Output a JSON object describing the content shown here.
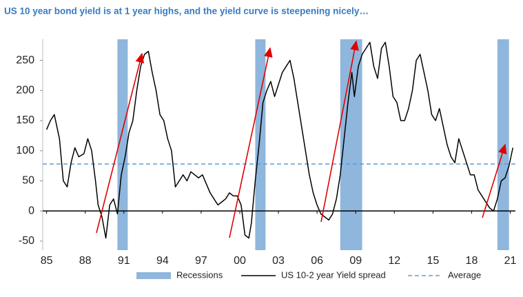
{
  "chart_data": {
    "type": "line",
    "title": "US 10 year bond yield is at 1 year highs, and the yield curve is steepening nicely…",
    "x": [
      1985.0,
      1985.3,
      1985.6,
      1986.0,
      1986.3,
      1986.6,
      1986.9,
      1987.2,
      1987.5,
      1987.9,
      1988.2,
      1988.5,
      1988.8,
      1989.0,
      1989.3,
      1989.6,
      1989.9,
      1990.2,
      1990.5,
      1990.8,
      1991.1,
      1991.4,
      1991.7,
      1992.0,
      1992.3,
      1992.6,
      1992.9,
      1993.2,
      1993.5,
      1993.8,
      1994.1,
      1994.4,
      1994.7,
      1995.0,
      1995.3,
      1995.6,
      1995.9,
      1996.2,
      1996.5,
      1996.8,
      1997.1,
      1997.4,
      1997.7,
      1998.0,
      1998.3,
      1998.6,
      1998.9,
      1999.2,
      1999.5,
      1999.8,
      2000.1,
      2000.4,
      2000.7,
      2000.9,
      2001.2,
      2001.5,
      2001.8,
      2002.1,
      2002.4,
      2002.7,
      2003.0,
      2003.3,
      2003.6,
      2003.9,
      2004.2,
      2004.5,
      2004.8,
      2005.1,
      2005.4,
      2005.7,
      2006.0,
      2006.3,
      2006.6,
      2006.9,
      2007.2,
      2007.5,
      2007.8,
      2008.1,
      2008.4,
      2008.7,
      2008.9,
      2009.2,
      2009.5,
      2009.8,
      2010.1,
      2010.4,
      2010.7,
      2011.0,
      2011.3,
      2011.6,
      2011.9,
      2012.2,
      2012.5,
      2012.8,
      2013.1,
      2013.4,
      2013.7,
      2014.0,
      2014.3,
      2014.6,
      2014.9,
      2015.2,
      2015.5,
      2015.8,
      2016.1,
      2016.4,
      2016.7,
      2017.0,
      2017.3,
      2017.6,
      2017.9,
      2018.2,
      2018.5,
      2018.8,
      2019.1,
      2019.4,
      2019.7,
      2020.0,
      2020.3,
      2020.6,
      2020.9,
      2021.2
    ],
    "series": [
      {
        "name": "US 10-2 year Yield spread",
        "color": "#000000",
        "values": [
          135,
          150,
          160,
          120,
          50,
          40,
          80,
          105,
          90,
          95,
          120,
          100,
          50,
          10,
          -10,
          -45,
          10,
          20,
          -5,
          60,
          90,
          130,
          150,
          200,
          240,
          260,
          265,
          230,
          200,
          160,
          150,
          120,
          100,
          40,
          50,
          60,
          50,
          65,
          60,
          55,
          60,
          45,
          30,
          20,
          10,
          15,
          20,
          30,
          25,
          25,
          10,
          -40,
          -45,
          -20,
          50,
          110,
          180,
          200,
          215,
          190,
          210,
          230,
          240,
          250,
          220,
          180,
          140,
          100,
          60,
          30,
          10,
          -5,
          -10,
          -15,
          -5,
          20,
          60,
          120,
          180,
          230,
          190,
          240,
          260,
          270,
          280,
          240,
          220,
          270,
          280,
          240,
          190,
          180,
          150,
          150,
          170,
          200,
          250,
          260,
          230,
          200,
          160,
          150,
          170,
          140,
          110,
          90,
          80,
          120,
          100,
          80,
          60,
          60,
          35,
          25,
          15,
          5,
          0,
          20,
          50,
          55,
          75,
          105
        ]
      }
    ],
    "average": {
      "name": "Average",
      "color": "#5b9bd5",
      "value": 78,
      "style": "dashed"
    },
    "recessions": {
      "name": "Recessions",
      "color": "#8fb6dc",
      "periods": [
        [
          1990.5,
          1991.3
        ],
        [
          2001.2,
          2002.0
        ],
        [
          2007.8,
          2009.5
        ],
        [
          2020.0,
          2020.9
        ]
      ]
    },
    "xlim": [
      1984.7,
      2021.4
    ],
    "ylim": [
      -65,
      285
    ],
    "xticks": [
      {
        "value": 1985,
        "label": "85"
      },
      {
        "value": 1988,
        "label": "88"
      },
      {
        "value": 1991,
        "label": "91"
      },
      {
        "value": 1994,
        "label": "94"
      },
      {
        "value": 1997,
        "label": "97"
      },
      {
        "value": 2000,
        "label": "00"
      },
      {
        "value": 2003,
        "label": "03"
      },
      {
        "value": 2006,
        "label": "06"
      },
      {
        "value": 2009,
        "label": "09"
      },
      {
        "value": 2012,
        "label": "12"
      },
      {
        "value": 2015,
        "label": "15"
      },
      {
        "value": 2018,
        "label": "18"
      },
      {
        "value": 2021,
        "label": "21"
      }
    ],
    "yticks": [
      -50,
      0,
      50,
      100,
      150,
      200,
      250
    ]
  }
}
